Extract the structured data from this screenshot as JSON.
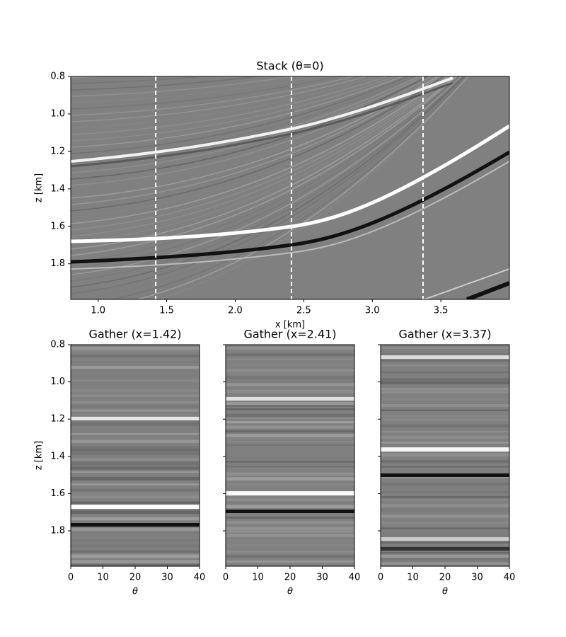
{
  "chart_data": [
    {
      "type": "image",
      "title": "Stack (θ=0)",
      "xlabel": "x [km]",
      "ylabel": "z [km]",
      "xlim": [
        0.8,
        4.0
      ],
      "ylim": [
        0.8,
        1.99
      ],
      "y_inverted": true,
      "xticks": [
        {
          "value": 1,
          "label": "1.0"
        },
        1.5,
        {
          "value": 2,
          "label": "2.0"
        },
        2.5,
        {
          "value": 3,
          "label": "3.0"
        },
        3.5
      ],
      "yticks": [
        0.8,
        {
          "value": 1,
          "label": "1.0"
        },
        1.2,
        1.4,
        1.6,
        1.8
      ],
      "vlines": [
        1.42,
        2.41,
        3.37
      ],
      "vline_color": "#ffffff",
      "ytick_labels": true
    },
    {
      "type": "image",
      "title": "Gather (x=1.42)",
      "xlabel": "θ",
      "ylabel": "z [km]",
      "xlim": [
        0,
        40
      ],
      "ylim": [
        0.8,
        1.99
      ],
      "y_inverted": true,
      "xticks": [
        0,
        10,
        20,
        30,
        40
      ],
      "yticks": [
        0.8,
        {
          "value": 1,
          "label": "1.0"
        },
        1.2,
        1.4,
        1.6,
        1.8
      ],
      "ytick_labels": true
    },
    {
      "type": "image",
      "title": "Gather (x=2.41)",
      "xlabel": "θ",
      "xlim": [
        0,
        40
      ],
      "ylim": [
        0.8,
        1.99
      ],
      "y_inverted": true,
      "xticks": [
        0,
        10,
        20,
        30,
        40
      ],
      "yticks": [
        0.8,
        {
          "value": 1,
          "label": "1.0"
        },
        1.2,
        1.4,
        1.6,
        1.8
      ],
      "ytick_labels": false
    },
    {
      "type": "image",
      "title": "Gather (x=3.37)",
      "xlabel": "θ",
      "xlim": [
        0,
        40
      ],
      "ylim": [
        0.8,
        1.99
      ],
      "y_inverted": true,
      "xticks": [
        0,
        10,
        20,
        30,
        40
      ],
      "yticks": [
        0.8,
        {
          "value": 1,
          "label": "1.0"
        },
        1.2,
        1.4,
        1.6,
        1.8
      ],
      "ytick_labels": false
    }
  ]
}
